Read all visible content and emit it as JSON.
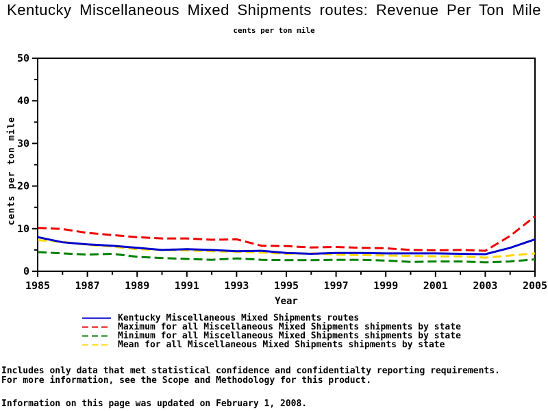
{
  "header": {
    "title": "Kentucky Miscellaneous Mixed Shipments routes: Revenue Per Ton Mile",
    "subtitle": "cents per ton mile"
  },
  "chart_data": {
    "type": "line",
    "x": [
      1985,
      1986,
      1987,
      1988,
      1989,
      1990,
      1991,
      1992,
      1993,
      1994,
      1995,
      1996,
      1997,
      1998,
      1999,
      2000,
      2001,
      2002,
      2003,
      2004,
      2005
    ],
    "series": [
      {
        "name": "kentucky",
        "label": "Kentucky Miscellaneous Mixed Shipments routes",
        "color": "#0000CC",
        "dash": "solid",
        "values": [
          8.0,
          6.8,
          6.3,
          6.0,
          5.5,
          5.0,
          5.2,
          5.0,
          4.7,
          4.8,
          4.3,
          4.1,
          4.3,
          4.3,
          4.2,
          4.2,
          4.2,
          4.1,
          4.0,
          5.5,
          7.5
        ]
      },
      {
        "name": "maximum",
        "label": "Maximum for all Miscellaneous Mixed Shipments shipments by state",
        "color": "#EE0000",
        "dash": "dashed",
        "values": [
          10.2,
          9.9,
          9.0,
          8.5,
          8.0,
          7.7,
          7.7,
          7.4,
          7.5,
          6.0,
          5.9,
          5.6,
          5.7,
          5.5,
          5.4,
          5.0,
          4.9,
          5.0,
          4.8,
          8.3,
          12.9
        ]
      },
      {
        "name": "minimum",
        "label": "Minimum for all Miscellaneous Mixed Shipments shipments by state",
        "color": "#008000",
        "dash": "dashed",
        "values": [
          4.5,
          4.2,
          3.9,
          4.1,
          3.4,
          3.1,
          2.9,
          2.7,
          3.0,
          2.7,
          2.6,
          2.6,
          2.7,
          2.7,
          2.5,
          2.2,
          2.3,
          2.3,
          2.1,
          2.3,
          2.8
        ]
      },
      {
        "name": "mean",
        "label": "Mean for all Miscellaneous Mixed Shipments shipments by state",
        "color": "#FFD700",
        "dash": "dashed",
        "values": [
          7.3,
          6.9,
          6.2,
          5.8,
          5.2,
          5.0,
          4.9,
          4.7,
          4.6,
          4.4,
          4.1,
          4.2,
          3.9,
          3.8,
          3.7,
          3.6,
          3.5,
          3.5,
          3.2,
          3.7,
          4.2
        ]
      }
    ],
    "xlabel": "Year",
    "ylabel": "cents per ton mile",
    "ylim": [
      0,
      50
    ],
    "yticks_major": [
      0,
      10,
      20,
      30,
      40,
      50
    ],
    "yticks_minor": [
      5,
      15,
      25,
      35,
      45
    ],
    "xticks_labeled": [
      1985,
      1987,
      1989,
      1991,
      1993,
      1995,
      1997,
      1999,
      2001,
      2003,
      2005
    ],
    "grid": false,
    "legend_position": "bottom",
    "frame_color": "#000000"
  },
  "footer": {
    "note_line1": "Includes only data that met statistical confidence and confidentialty reporting requirements.",
    "note_line2": "For more information, see the Scope and Methodology for this product.",
    "updated": "Information on this page was updated on February 1, 2008."
  }
}
